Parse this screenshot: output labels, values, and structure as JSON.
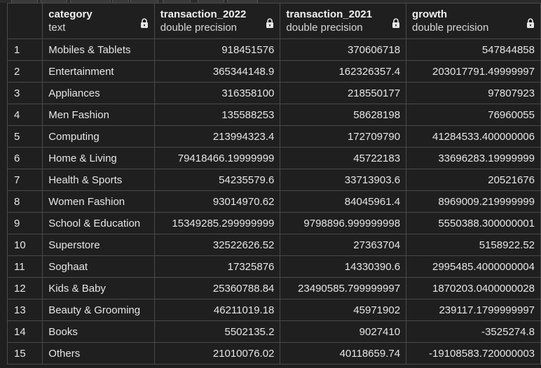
{
  "columns": [
    {
      "name": "",
      "type": ""
    },
    {
      "name": "category",
      "type": "text"
    },
    {
      "name": "transaction_2022",
      "type": "double precision"
    },
    {
      "name": "transaction_2021",
      "type": "double precision"
    },
    {
      "name": "growth",
      "type": "double precision"
    }
  ],
  "rows": [
    {
      "idx": "1",
      "category": "Mobiles & Tablets",
      "t2022": "918451576",
      "t2021": "370606718",
      "growth": "547844858"
    },
    {
      "idx": "2",
      "category": "Entertainment",
      "t2022": "365344148.9",
      "t2021": "162326357.4",
      "growth": "203017791.49999997"
    },
    {
      "idx": "3",
      "category": "Appliances",
      "t2022": "316358100",
      "t2021": "218550177",
      "growth": "97807923"
    },
    {
      "idx": "4",
      "category": "Men Fashion",
      "t2022": "135588253",
      "t2021": "58628198",
      "growth": "76960055"
    },
    {
      "idx": "5",
      "category": "Computing",
      "t2022": "213994323.4",
      "t2021": "172709790",
      "growth": "41284533.400000006"
    },
    {
      "idx": "6",
      "category": "Home & Living",
      "t2022": "79418466.19999999",
      "t2021": "45722183",
      "growth": "33696283.19999999"
    },
    {
      "idx": "7",
      "category": "Health & Sports",
      "t2022": "54235579.6",
      "t2021": "33713903.6",
      "growth": "20521676"
    },
    {
      "idx": "8",
      "category": "Women Fashion",
      "t2022": "93014970.62",
      "t2021": "84045961.4",
      "growth": "8969009.219999999"
    },
    {
      "idx": "9",
      "category": "School & Education",
      "t2022": "15349285.299999999",
      "t2021": "9798896.999999998",
      "growth": "5550388.300000001"
    },
    {
      "idx": "10",
      "category": "Superstore",
      "t2022": "32522626.52",
      "t2021": "27363704",
      "growth": "5158922.52"
    },
    {
      "idx": "11",
      "category": "Soghaat",
      "t2022": "17325876",
      "t2021": "14330390.6",
      "growth": "2995485.4000000004"
    },
    {
      "idx": "12",
      "category": "Kids & Baby",
      "t2022": "25360788.84",
      "t2021": "23490585.799999997",
      "growth": "1870203.0400000028"
    },
    {
      "idx": "13",
      "category": "Beauty & Grooming",
      "t2022": "46211019.18",
      "t2021": "45971902",
      "growth": "239117.1799999997"
    },
    {
      "idx": "14",
      "category": "Books",
      "t2022": "5502135.2",
      "t2021": "9027410",
      "growth": "-3525274.8"
    },
    {
      "idx": "15",
      "category": "Others",
      "t2022": "21010076.02",
      "t2021": "40118659.74",
      "growth": "-19108583.720000003"
    }
  ],
  "icons": {
    "column_lock": "lock-icon"
  },
  "colors": {
    "background": "#1f1f1f",
    "grid_line": "#4a4a4a",
    "text": "#e6e6e6"
  }
}
